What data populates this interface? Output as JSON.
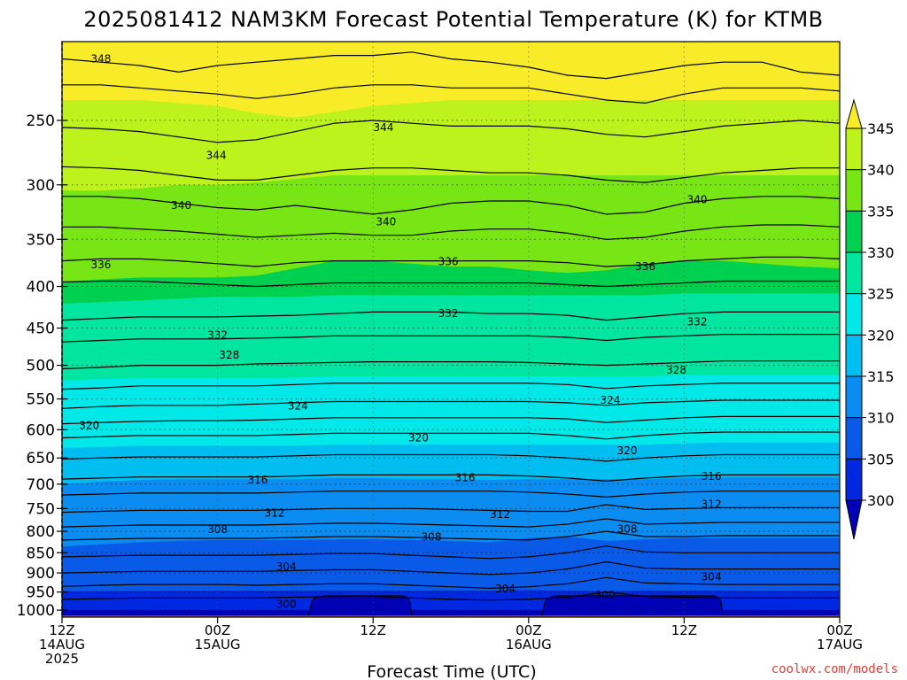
{
  "title": "2025081412 NAM3KM Forecast Potential Temperature (K) for KTMB",
  "credit": "coolwx.com/models",
  "chart_data": {
    "type": "heatmap",
    "title": "2025081412 NAM3KM Forecast Potential Temperature (K) for KTMB",
    "xlabel": "Forecast Time (UTC)",
    "ylabel": "",
    "x_range_hours": [
      0,
      60
    ],
    "y_range_hpa": [
      1020,
      200
    ],
    "y_scale": "log",
    "grid": true,
    "y_ticks": [
      250,
      300,
      350,
      400,
      450,
      500,
      550,
      600,
      650,
      700,
      750,
      800,
      850,
      900,
      950,
      1000
    ],
    "x_ticks": [
      {
        "hour": 0,
        "lines": [
          "12Z",
          "14AUG",
          "2025"
        ]
      },
      {
        "hour": 12,
        "lines": [
          "00Z",
          "15AUG"
        ]
      },
      {
        "hour": 24,
        "lines": [
          "12Z"
        ]
      },
      {
        "hour": 36,
        "lines": [
          "00Z",
          "16AUG"
        ]
      },
      {
        "hour": 48,
        "lines": [
          "12Z"
        ]
      },
      {
        "hour": 60,
        "lines": [
          "00Z",
          "17AUG"
        ]
      }
    ],
    "colorbar": {
      "levels": [
        345,
        340,
        335,
        330,
        325,
        320,
        315,
        310,
        305,
        300
      ],
      "colors": [
        "#f8ec28",
        "#bef21c",
        "#78e614",
        "#00d050",
        "#00e6a0",
        "#00e8e8",
        "#00bef0",
        "#0a8cf0",
        "#0a5ae8",
        "#0028e0",
        "#0000b4"
      ],
      "extend": "both"
    },
    "band_boundaries": [
      {
        "level": 300,
        "pressure_hpa": [
          1000,
          1000,
          1000,
          1000,
          1000,
          1000,
          1000,
          1000,
          1000,
          1000,
          1000,
          1000,
          1000,
          1000,
          1000,
          1000,
          1000,
          1000,
          1000,
          1000,
          1000
        ]
      },
      {
        "level": 305,
        "pressure_hpa": [
          948,
          948,
          947,
          946,
          946,
          946,
          946,
          946,
          946,
          946,
          946,
          946,
          945,
          946,
          948,
          946,
          946,
          946,
          946,
          946,
          946
        ]
      },
      {
        "level": 310,
        "pressure_hpa": [
          835,
          830,
          825,
          822,
          820,
          820,
          820,
          818,
          818,
          820,
          822,
          825,
          815,
          812,
          822,
          818,
          815,
          815,
          815,
          815,
          815
        ]
      },
      {
        "level": 315,
        "pressure_hpa": [
          700,
          695,
          692,
          690,
          690,
          690,
          690,
          688,
          688,
          690,
          690,
          692,
          690,
          690,
          690,
          690,
          688,
          686,
          686,
          686,
          686
        ]
      },
      {
        "level": 320,
        "pressure_hpa": [
          632,
          630,
          628,
          628,
          628,
          628,
          628,
          626,
          626,
          626,
          626,
          626,
          626,
          626,
          626,
          626,
          624,
          622,
          622,
          622,
          622
        ]
      },
      {
        "level": 325,
        "pressure_hpa": [
          522,
          520,
          518,
          518,
          518,
          518,
          518,
          516,
          516,
          516,
          516,
          516,
          516,
          516,
          516,
          516,
          514,
          514,
          514,
          514,
          514
        ]
      },
      {
        "level": 330,
        "pressure_hpa": [
          420,
          418,
          416,
          414,
          412,
          412,
          412,
          410,
          410,
          410,
          410,
          410,
          410,
          410,
          410,
          410,
          408,
          408,
          408,
          408,
          408
        ]
      },
      {
        "level": 335,
        "pressure_hpa": [
          395,
          392,
          390,
          390,
          390,
          388,
          380,
          372,
          372,
          375,
          378,
          378,
          382,
          385,
          382,
          375,
          372,
          372,
          375,
          378,
          380
        ]
      },
      {
        "level": 340,
        "pressure_hpa": [
          305,
          305,
          303,
          300,
          300,
          298,
          295,
          292,
          292,
          292,
          292,
          292,
          292,
          292,
          292,
          292,
          292,
          292,
          292,
          292,
          292
        ]
      },
      {
        "level": 345,
        "pressure_hpa": [
          236,
          236,
          236,
          238,
          240,
          245,
          248,
          244,
          240,
          238,
          236,
          236,
          236,
          236,
          236,
          236,
          236,
          236,
          236,
          236,
          236
        ]
      }
    ],
    "contour_lines": [
      {
        "value": 348,
        "pressure_hpa": [
          210,
          212,
          214,
          218,
          214,
          212,
          210,
          208,
          208,
          206,
          210,
          212,
          215,
          220,
          222,
          218,
          214,
          212,
          212,
          218,
          220
        ]
      },
      {
        "value": 346,
        "pressure_hpa": [
          226,
          226,
          228,
          230,
          232,
          235,
          232,
          228,
          226,
          226,
          228,
          228,
          228,
          232,
          236,
          238,
          232,
          228,
          228,
          228,
          230
        ]
      },
      {
        "value": 344,
        "pressure_hpa": [
          255,
          256,
          258,
          262,
          266,
          264,
          258,
          252,
          250,
          252,
          254,
          254,
          254,
          256,
          260,
          262,
          258,
          254,
          252,
          250,
          252
        ]
      },
      {
        "value": 342,
        "pressure_hpa": [
          285,
          286,
          288,
          292,
          296,
          296,
          292,
          288,
          286,
          286,
          288,
          290,
          290,
          292,
          296,
          298,
          294,
          290,
          288,
          286,
          286
        ]
      },
      {
        "value": 340,
        "pressure_hpa": [
          310,
          310,
          312,
          316,
          320,
          322,
          318,
          322,
          326,
          322,
          316,
          314,
          314,
          318,
          326,
          324,
          316,
          312,
          310,
          310,
          312
        ]
      },
      {
        "value": 338,
        "pressure_hpa": [
          338,
          338,
          340,
          342,
          345,
          348,
          346,
          344,
          346,
          346,
          342,
          340,
          340,
          344,
          350,
          348,
          342,
          338,
          336,
          336,
          338
        ]
      },
      {
        "value": 336,
        "pressure_hpa": [
          372,
          370,
          370,
          372,
          375,
          378,
          374,
          372,
          372,
          372,
          372,
          372,
          372,
          374,
          378,
          376,
          372,
          370,
          368,
          368,
          370
        ]
      },
      {
        "value": 334,
        "pressure_hpa": [
          395,
          394,
          394,
          396,
          398,
          400,
          398,
          396,
          396,
          396,
          396,
          396,
          396,
          398,
          400,
          398,
          396,
          394,
          394,
          394,
          394
        ]
      },
      {
        "value": 332,
        "pressure_hpa": [
          440,
          438,
          436,
          436,
          436,
          435,
          434,
          432,
          430,
          430,
          430,
          432,
          432,
          434,
          440,
          436,
          432,
          430,
          430,
          430,
          430
        ]
      },
      {
        "value": 330,
        "pressure_hpa": [
          468,
          466,
          464,
          464,
          464,
          463,
          462,
          460,
          460,
          460,
          460,
          460,
          460,
          462,
          466,
          462,
          460,
          458,
          458,
          458,
          458
        ]
      },
      {
        "value": 328,
        "pressure_hpa": [
          505,
          503,
          500,
          500,
          500,
          498,
          497,
          496,
          495,
          495,
          495,
          495,
          496,
          498,
          500,
          498,
          496,
          494,
          494,
          494,
          494
        ]
      },
      {
        "value": 326,
        "pressure_hpa": [
          535,
          533,
          530,
          530,
          530,
          530,
          528,
          526,
          526,
          526,
          526,
          526,
          526,
          528,
          534,
          530,
          528,
          526,
          526,
          526,
          526
        ]
      },
      {
        "value": 324,
        "pressure_hpa": [
          565,
          562,
          560,
          560,
          560,
          558,
          556,
          554,
          554,
          554,
          554,
          554,
          554,
          556,
          560,
          556,
          554,
          552,
          552,
          552,
          552
        ]
      },
      {
        "value": 322,
        "pressure_hpa": [
          590,
          588,
          586,
          585,
          585,
          584,
          582,
          580,
          580,
          580,
          580,
          580,
          580,
          582,
          588,
          584,
          580,
          578,
          578,
          578,
          578
        ]
      },
      {
        "value": 320,
        "pressure_hpa": [
          614,
          612,
          610,
          610,
          610,
          610,
          608,
          606,
          606,
          606,
          606,
          606,
          606,
          610,
          616,
          610,
          606,
          604,
          604,
          604,
          604
        ]
      },
      {
        "value": 318,
        "pressure_hpa": [
          652,
          650,
          648,
          648,
          648,
          648,
          646,
          644,
          644,
          644,
          644,
          644,
          646,
          650,
          656,
          650,
          646,
          644,
          644,
          644,
          644
        ]
      },
      {
        "value": 316,
        "pressure_hpa": [
          690,
          688,
          686,
          686,
          686,
          686,
          684,
          682,
          682,
          682,
          682,
          682,
          684,
          688,
          694,
          688,
          684,
          682,
          682,
          682,
          682
        ]
      },
      {
        "value": 314,
        "pressure_hpa": [
          722,
          720,
          718,
          718,
          718,
          718,
          716,
          714,
          714,
          714,
          714,
          714,
          716,
          720,
          726,
          720,
          716,
          714,
          714,
          714,
          714
        ]
      },
      {
        "value": 312,
        "pressure_hpa": [
          758,
          756,
          754,
          754,
          754,
          754,
          752,
          750,
          750,
          750,
          752,
          754,
          756,
          756,
          742,
          752,
          750,
          748,
          748,
          748,
          748
        ]
      },
      {
        "value": 310,
        "pressure_hpa": [
          790,
          788,
          786,
          786,
          786,
          786,
          784,
          782,
          782,
          784,
          786,
          788,
          790,
          784,
          772,
          784,
          782,
          780,
          780,
          780,
          780
        ]
      },
      {
        "value": 308,
        "pressure_hpa": [
          820,
          818,
          816,
          816,
          816,
          816,
          814,
          812,
          812,
          814,
          816,
          818,
          820,
          812,
          800,
          812,
          812,
          810,
          810,
          810,
          810
        ]
      },
      {
        "value": 306,
        "pressure_hpa": [
          860,
          858,
          856,
          856,
          856,
          856,
          854,
          852,
          852,
          856,
          860,
          864,
          860,
          850,
          834,
          848,
          850,
          850,
          850,
          850,
          850
        ]
      },
      {
        "value": 304,
        "pressure_hpa": [
          900,
          898,
          896,
          896,
          896,
          896,
          894,
          892,
          892,
          896,
          900,
          904,
          900,
          890,
          872,
          888,
          890,
          890,
          890,
          890,
          890
        ]
      },
      {
        "value": 302,
        "pressure_hpa": [
          935,
          932,
          930,
          930,
          930,
          932,
          930,
          928,
          928,
          932,
          936,
          940,
          936,
          928,
          912,
          926,
          928,
          930,
          930,
          930,
          930
        ]
      },
      {
        "value": 300,
        "pressure_hpa": [
          970,
          968,
          966,
          966,
          966,
          966,
          964,
          962,
          962,
          966,
          970,
          972,
          970,
          964,
          950,
          962,
          964,
          966,
          966,
          966,
          966
        ]
      }
    ],
    "cold_pockets": [
      {
        "from_hour": 19,
        "to_hour": 27,
        "top_hpa": 960
      },
      {
        "from_hour": 37,
        "to_hour": 51,
        "top_hpa": 960
      }
    ],
    "contour_labels": [
      {
        "text": "348",
        "hour": 3,
        "hpa": 210
      },
      {
        "text": "344",
        "hour": 24.8,
        "hpa": 255
      },
      {
        "text": "344",
        "hour": 11.9,
        "hpa": 276
      },
      {
        "text": "340",
        "hour": 9.2,
        "hpa": 318
      },
      {
        "text": "340",
        "hour": 25,
        "hpa": 333
      },
      {
        "text": "340",
        "hour": 49,
        "hpa": 313
      },
      {
        "text": "336",
        "hour": 3,
        "hpa": 376
      },
      {
        "text": "336",
        "hour": 29.8,
        "hpa": 373
      },
      {
        "text": "336",
        "hour": 45,
        "hpa": 378
      },
      {
        "text": "332",
        "hour": 29.8,
        "hpa": 432
      },
      {
        "text": "332",
        "hour": 12,
        "hpa": 459
      },
      {
        "text": "332",
        "hour": 49,
        "hpa": 442
      },
      {
        "text": "328",
        "hour": 12.9,
        "hpa": 486
      },
      {
        "text": "328",
        "hour": 47.4,
        "hpa": 507
      },
      {
        "text": "324",
        "hour": 18.2,
        "hpa": 561
      },
      {
        "text": "324",
        "hour": 42.3,
        "hpa": 552
      },
      {
        "text": "320",
        "hour": 2.1,
        "hpa": 593
      },
      {
        "text": "320",
        "hour": 27.5,
        "hpa": 614
      },
      {
        "text": "320",
        "hour": 43.6,
        "hpa": 637
      },
      {
        "text": "316",
        "hour": 15.1,
        "hpa": 692
      },
      {
        "text": "316",
        "hour": 31.1,
        "hpa": 687
      },
      {
        "text": "316",
        "hour": 50.1,
        "hpa": 685
      },
      {
        "text": "312",
        "hour": 16.4,
        "hpa": 760
      },
      {
        "text": "312",
        "hour": 33.8,
        "hpa": 763
      },
      {
        "text": "312",
        "hour": 50.1,
        "hpa": 741
      },
      {
        "text": "308",
        "hour": 12,
        "hpa": 796
      },
      {
        "text": "308",
        "hour": 28.5,
        "hpa": 813
      },
      {
        "text": "308",
        "hour": 43.6,
        "hpa": 795
      },
      {
        "text": "304",
        "hour": 17.3,
        "hpa": 884
      },
      {
        "text": "304",
        "hour": 34.2,
        "hpa": 941
      },
      {
        "text": "304",
        "hour": 50.1,
        "hpa": 910
      },
      {
        "text": "300",
        "hour": 17.3,
        "hpa": 983
      },
      {
        "text": "300",
        "hour": 41.9,
        "hpa": 958
      }
    ]
  }
}
